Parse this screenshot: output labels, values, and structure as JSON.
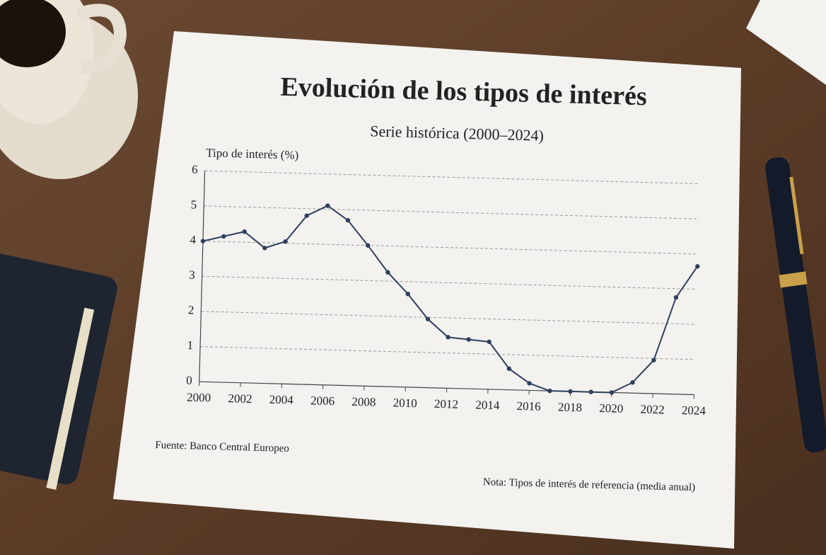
{
  "chart_data": {
    "type": "line",
    "title": "Evolución de los tipos de interés",
    "subtitle": "Serie histórica (2000–2024)",
    "y_label": "Tipo de interés (%)",
    "source": "Fuente: Banco Central Europeo",
    "note": "Nota: Tipos de interés de referencia (media anual)",
    "x": [
      2000,
      2001,
      2002,
      2003,
      2004,
      2005,
      2006,
      2007,
      2008,
      2009,
      2010,
      2011,
      2012,
      2013,
      2014,
      2015,
      2016,
      2017,
      2018,
      2019,
      2020,
      2021,
      2022,
      2023,
      2024
    ],
    "series": [
      {
        "color": "#2f3f5e",
        "values": [
          4.0,
          4.15,
          4.3,
          3.85,
          4.05,
          4.8,
          5.1,
          4.7,
          4.0,
          3.25,
          2.65,
          1.95,
          1.45,
          1.4,
          1.35,
          0.6,
          0.2,
          0.0,
          0.0,
          0.0,
          0.0,
          0.3,
          0.95,
          2.75,
          3.65
        ]
      }
    ],
    "xlim": [
      2000,
      2024
    ],
    "xticks": [
      2000,
      2002,
      2004,
      2006,
      2008,
      2010,
      2012,
      2014,
      2016,
      2018,
      2020,
      2022,
      2024
    ],
    "ylim": [
      0,
      6
    ],
    "yticks": [
      0,
      1,
      2,
      3,
      4,
      5,
      6
    ],
    "grid": true
  }
}
